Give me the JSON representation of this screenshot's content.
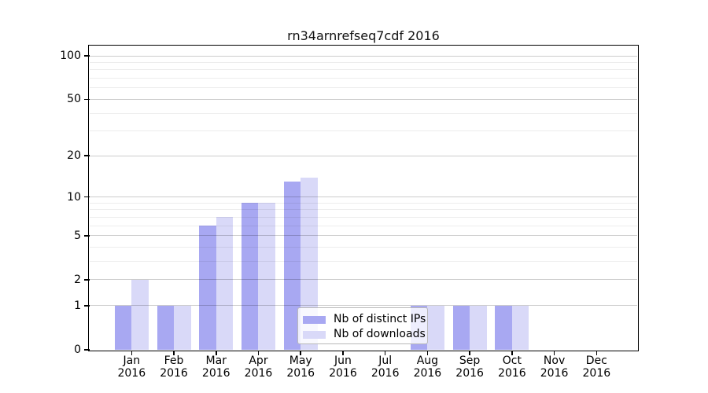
{
  "chart_data": {
    "type": "bar",
    "title": "rn34arnrefseq7cdf 2016",
    "categories": [
      "Jan 2016",
      "Feb 2016",
      "Mar 2016",
      "Apr 2016",
      "May 2016",
      "Jun 2016",
      "Jul 2016",
      "Aug 2016",
      "Sep 2016",
      "Oct 2016",
      "Nov 2016",
      "Dec 2016"
    ],
    "series": [
      {
        "name": "Nb of distinct IPs",
        "color": "#a8a8f2",
        "values": [
          1,
          1,
          6,
          9,
          13,
          0,
          0,
          1,
          1,
          1,
          0,
          0
        ]
      },
      {
        "name": "Nb of downloads",
        "color": "#d9d9f8",
        "values": [
          2,
          1,
          7,
          9,
          14,
          0,
          0,
          1,
          1,
          1,
          0,
          0
        ]
      }
    ],
    "xlabel": "",
    "ylabel": "",
    "y_axis": {
      "scale": "log1p",
      "major_ticks": [
        0,
        1,
        2,
        5,
        10,
        20,
        50,
        100
      ],
      "minor_gridlines": [
        3,
        4,
        6,
        7,
        8,
        9,
        30,
        40,
        60,
        70,
        80,
        90
      ],
      "ylim": [
        0,
        115
      ],
      "grid": "on"
    },
    "legend": {
      "position": "inside-bottom-center",
      "frame": true
    }
  },
  "colors": {
    "background": "#ffffff",
    "bar_dark": "#a8a8f2",
    "bar_light": "#d9d9f8",
    "grid_major": "#cccccc",
    "grid_minor": "#ececec",
    "axis": "#000000",
    "text": "#000000"
  }
}
